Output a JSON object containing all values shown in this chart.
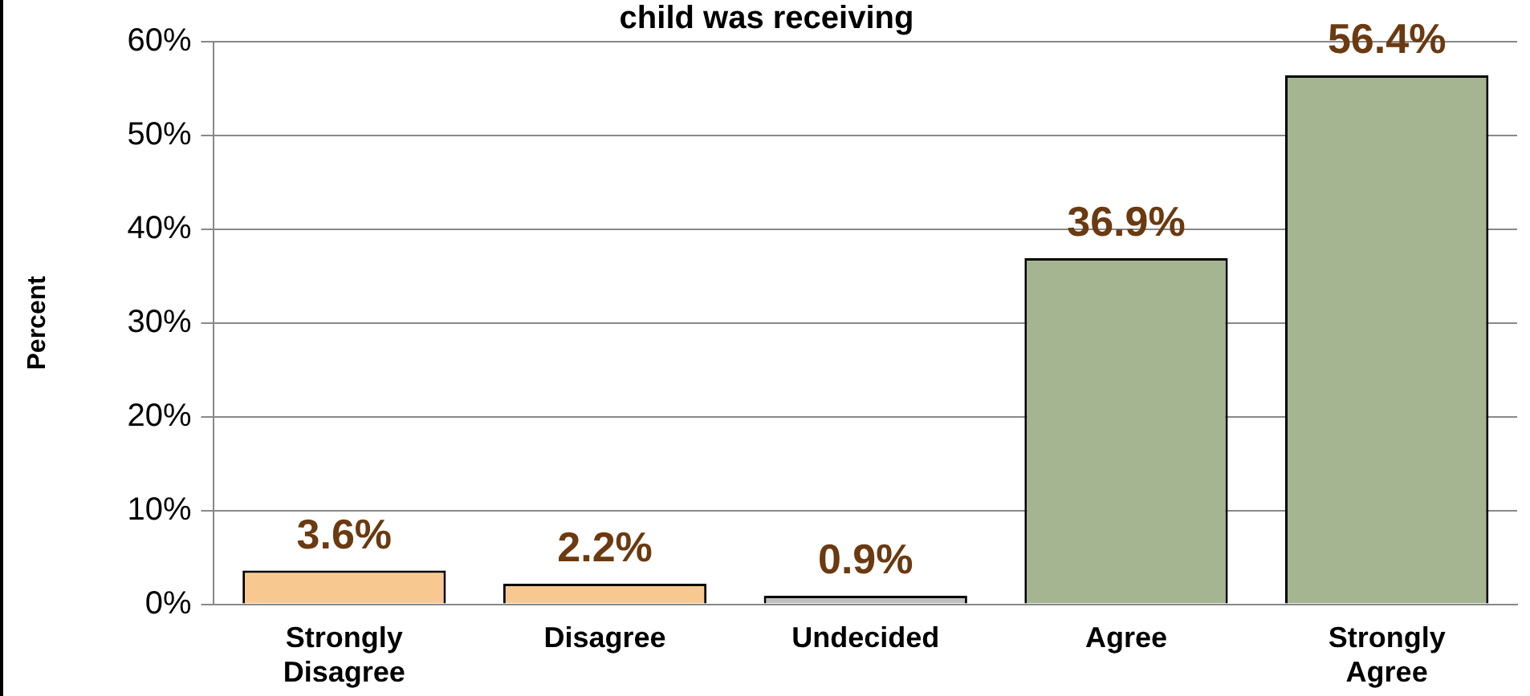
{
  "chart_data": {
    "type": "bar",
    "title": "child was receiving",
    "ylabel": "Percent",
    "categories": [
      "Strongly Disagree",
      "Disagree",
      "Undecided",
      "Agree",
      "Strongly Agree"
    ],
    "values": [
      3.6,
      2.2,
      0.9,
      36.9,
      56.4
    ],
    "colors": [
      "#f8c891",
      "#f8c891",
      "#bfbfbf",
      "#a5b592",
      "#a5b592"
    ],
    "ylim": [
      0,
      60
    ],
    "yticks": [
      {
        "value": 0,
        "label": "0%"
      },
      {
        "value": 10,
        "label": "10%"
      },
      {
        "value": 20,
        "label": "20%"
      },
      {
        "value": 30,
        "label": "30%"
      },
      {
        "value": 40,
        "label": "40%"
      },
      {
        "value": 50,
        "label": "50%"
      },
      {
        "value": 60,
        "label": "60%"
      }
    ],
    "value_labels": [
      "3.6%",
      "2.2%",
      "0.9%",
      "36.9%",
      "56.4%"
    ],
    "grid": "y",
    "legend": false
  }
}
